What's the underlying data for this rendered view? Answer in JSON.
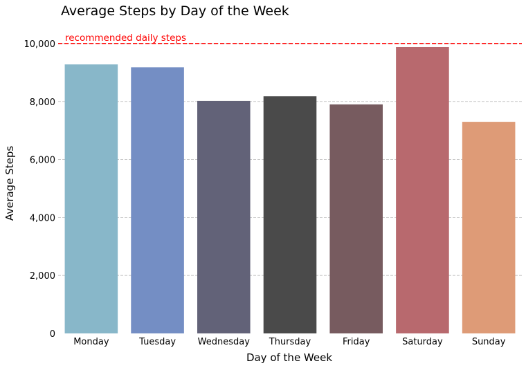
{
  "chart_data": {
    "type": "bar",
    "title": "Average Steps by Day of the Week",
    "xlabel": "Day of the Week",
    "ylabel": "Average Steps",
    "categories": [
      "Monday",
      "Tuesday",
      "Wednesday",
      "Thursday",
      "Friday",
      "Saturday",
      "Sunday"
    ],
    "values": [
      9280,
      9180,
      8020,
      8180,
      7900,
      9880,
      7300
    ],
    "colors": [
      "#88b7c9",
      "#748ec4",
      "#626278",
      "#4a4a4a",
      "#775b5f",
      "#b8696e",
      "#de9b77"
    ],
    "ylim": [
      0,
      10500
    ],
    "yticks": [
      0,
      2000,
      4000,
      6000,
      8000,
      10000
    ],
    "ytick_labels": [
      "0",
      "2,000",
      "4,000",
      "6,000",
      "8,000",
      "10,000"
    ],
    "grid": true,
    "reference_line": {
      "value": 10000,
      "label": "recommended daily steps",
      "color": "#ff0000"
    }
  }
}
